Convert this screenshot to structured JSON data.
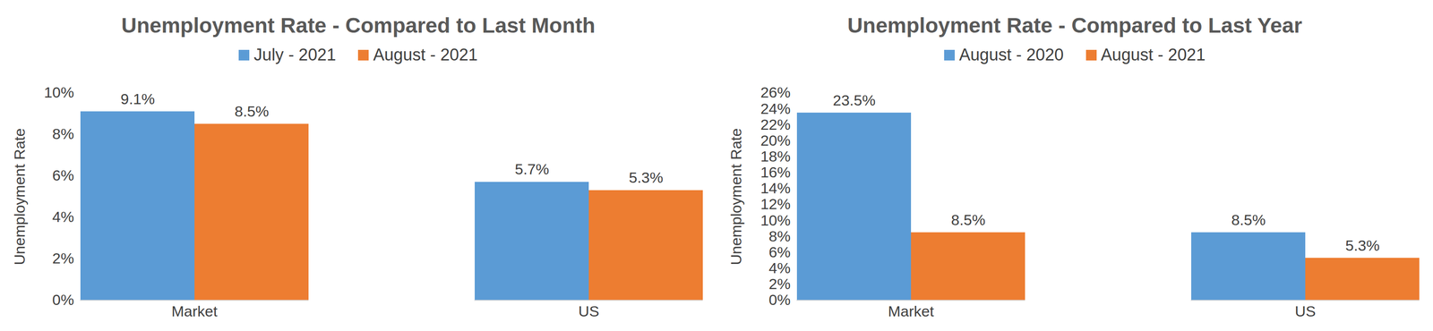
{
  "chart_data": [
    {
      "type": "bar",
      "title": "Unemployment Rate - Compared to Last Month",
      "y_label": "Unemployment Rate",
      "categories": [
        "Market",
        "US"
      ],
      "series": [
        {
          "name": "July - 2021",
          "color": "#5b9bd5",
          "values": [
            9.1,
            5.7
          ],
          "value_labels": [
            "9.1%",
            "5.7%"
          ]
        },
        {
          "name": "August - 2021",
          "color": "#ed7d31",
          "values": [
            8.5,
            5.3
          ],
          "value_labels": [
            "8.5%",
            "5.3%"
          ]
        }
      ],
      "ylim": [
        0,
        10
      ],
      "yticks": [
        {
          "value": 0,
          "label": "0%"
        },
        {
          "value": 2,
          "label": "2%"
        },
        {
          "value": 4,
          "label": "4%"
        },
        {
          "value": 6,
          "label": "6%"
        },
        {
          "value": 8,
          "label": "8%"
        },
        {
          "value": 10,
          "label": "10%"
        }
      ],
      "legend": "top",
      "data_labels": true,
      "grid": false
    },
    {
      "type": "bar",
      "title": "Unemployment Rate - Compared to Last Year",
      "y_label": "Unemployment Rate",
      "categories": [
        "Market",
        "US"
      ],
      "series": [
        {
          "name": "August - 2020",
          "color": "#5b9bd5",
          "values": [
            23.5,
            8.5
          ],
          "value_labels": [
            "23.5%",
            "8.5%"
          ]
        },
        {
          "name": "August - 2021",
          "color": "#ed7d31",
          "values": [
            8.5,
            5.3
          ],
          "value_labels": [
            "8.5%",
            "5.3%"
          ]
        }
      ],
      "ylim": [
        0,
        26
      ],
      "yticks": [
        {
          "value": 0,
          "label": "0%"
        },
        {
          "value": 2,
          "label": "2%"
        },
        {
          "value": 4,
          "label": "4%"
        },
        {
          "value": 6,
          "label": "6%"
        },
        {
          "value": 8,
          "label": "8%"
        },
        {
          "value": 10,
          "label": "10%"
        },
        {
          "value": 12,
          "label": "12%"
        },
        {
          "value": 14,
          "label": "14%"
        },
        {
          "value": 16,
          "label": "16%"
        },
        {
          "value": 18,
          "label": "18%"
        },
        {
          "value": 20,
          "label": "20%"
        },
        {
          "value": 22,
          "label": "22%"
        },
        {
          "value": 24,
          "label": "24%"
        },
        {
          "value": 26,
          "label": "26%"
        }
      ],
      "legend": "top",
      "data_labels": true,
      "grid": false
    }
  ]
}
